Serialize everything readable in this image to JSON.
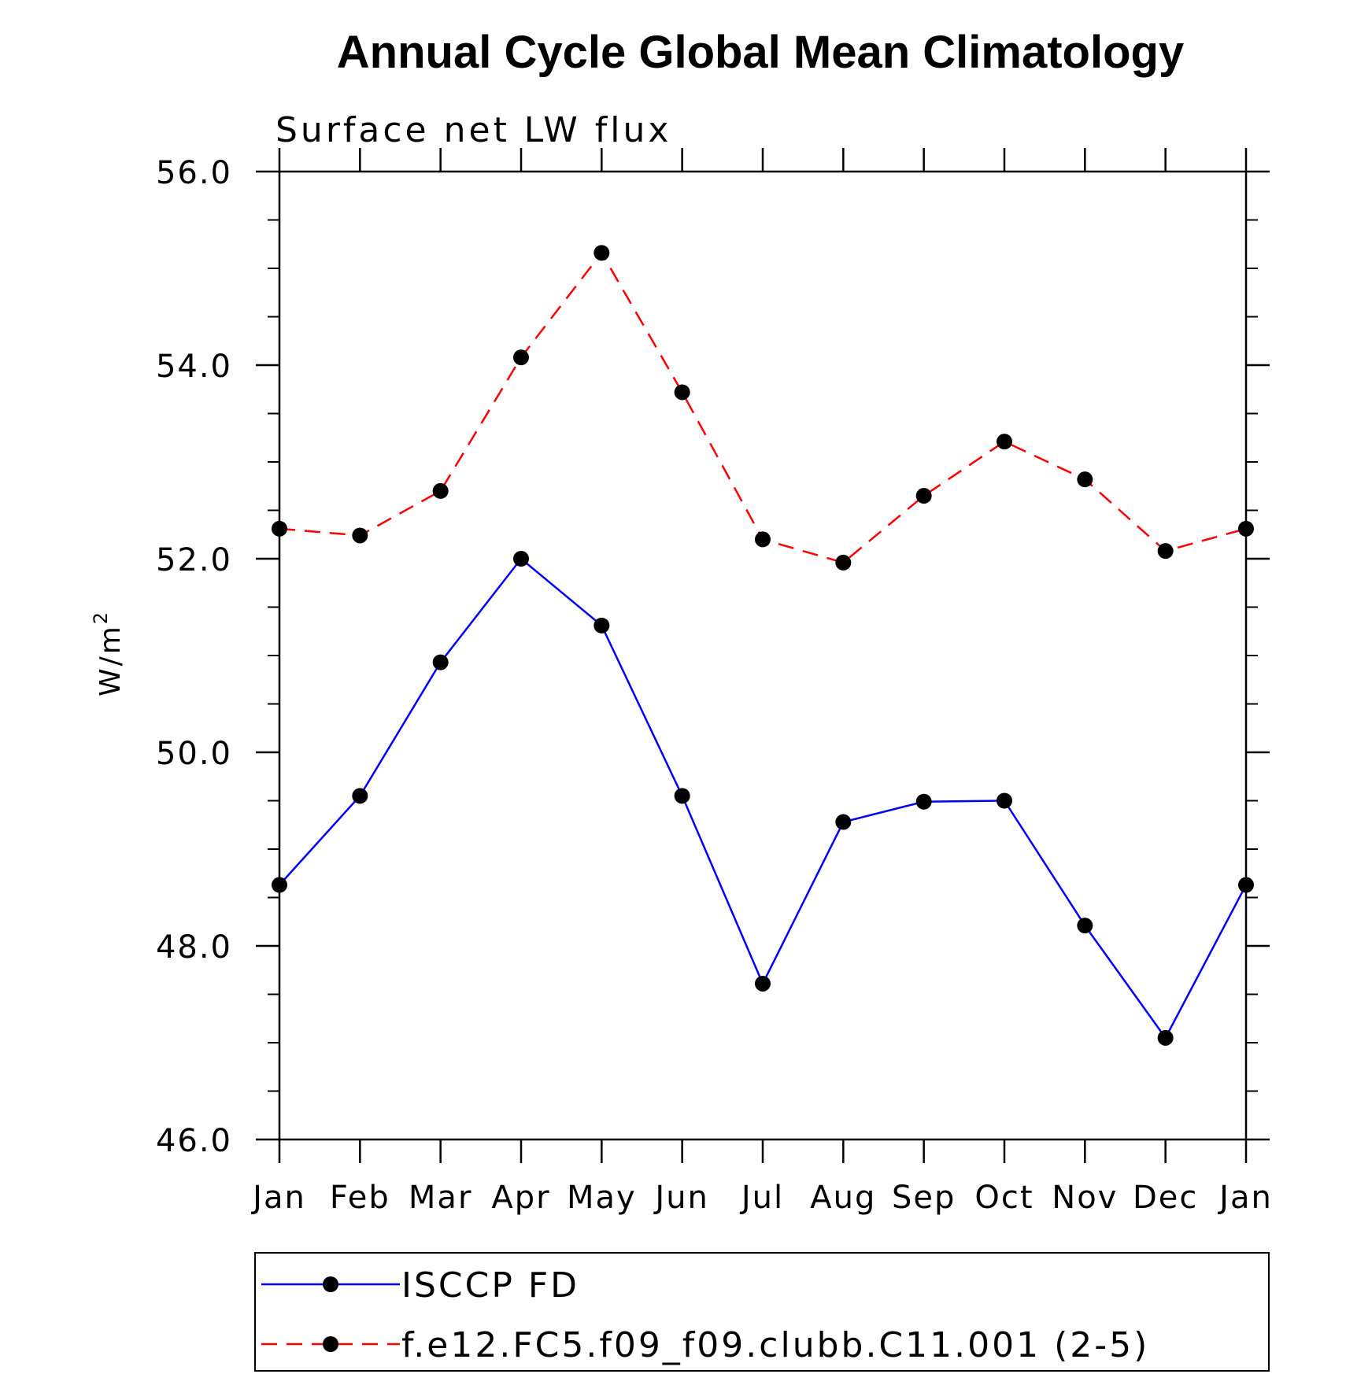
{
  "chart_data": {
    "type": "line",
    "title": "Annual Cycle Global Mean Climatology",
    "subtitle": "Surface net LW flux",
    "ylabel": "W/m",
    "ylabel_superscript": "2",
    "xlabel": "",
    "categories": [
      "Jan",
      "Feb",
      "Mar",
      "Apr",
      "May",
      "Jun",
      "Jul",
      "Aug",
      "Sep",
      "Oct",
      "Nov",
      "Dec",
      "Jan"
    ],
    "ylim": [
      46.0,
      56.0
    ],
    "yticks": [
      "46.0",
      "48.0",
      "50.0",
      "52.0",
      "54.0",
      "56.0"
    ],
    "grid": false,
    "legend_position": "bottom",
    "series": [
      {
        "name": "ISCCP FD",
        "color": "#0000ff",
        "line_style": "solid",
        "marker": "filled-circle",
        "values": [
          48.63,
          49.55,
          50.93,
          52.0,
          51.31,
          49.55,
          47.61,
          49.28,
          49.49,
          49.5,
          48.21,
          47.05,
          48.63
        ]
      },
      {
        "name": "f.e12.FC5.f09_f09.clubb.C11.001 (2-5)",
        "color": "#ff0000",
        "line_style": "dashed",
        "marker": "filled-circle",
        "values": [
          52.31,
          52.24,
          52.7,
          54.08,
          55.16,
          53.72,
          52.2,
          51.96,
          52.65,
          53.21,
          52.82,
          52.08,
          52.31
        ]
      }
    ]
  }
}
